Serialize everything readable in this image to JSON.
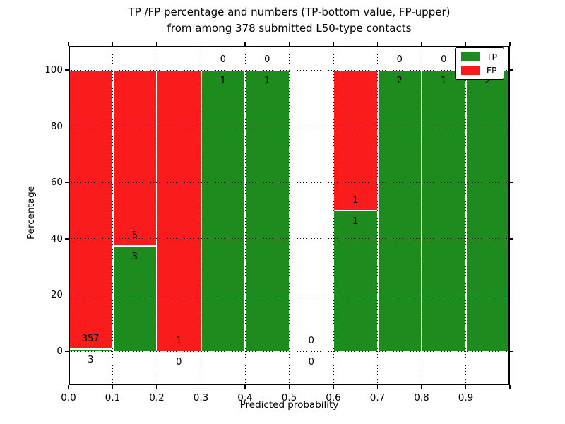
{
  "title": {
    "line1": "TP /FP percentage and numbers (TP-bottom value, FP-upper)",
    "line2": "from among 378 submitted L50-type contacts"
  },
  "axes": {
    "xlabel": "Predicted probability",
    "ylabel": "Percentage",
    "x_tick_labels": [
      "0.0",
      "0.1",
      "0.2",
      "0.3",
      "0.4",
      "0.5",
      "0.6",
      "0.7",
      "0.8",
      "0.9"
    ],
    "y_tick_values": [
      0,
      20,
      40,
      60,
      80,
      100
    ],
    "y_tick_labels": [
      "0",
      "20",
      "40",
      "60",
      "80",
      "100"
    ]
  },
  "legend": {
    "position": "upper-right",
    "items": [
      {
        "label": "TP",
        "color": "#1e8b1e"
      },
      {
        "label": "FP",
        "color": "#fa1c1c"
      }
    ]
  },
  "colors": {
    "tp": "#1e8b1e",
    "fp": "#fa1c1c",
    "bar_edge": "#ffffff",
    "grid": "#000000",
    "frame": "#000000",
    "background": "#ffffff"
  },
  "chart_data": {
    "type": "bar",
    "stacked": true,
    "title": "TP /FP percentage and numbers (TP-bottom value, FP-upper) from among 378 submitted L50-type contacts",
    "xlabel": "Predicted probability",
    "ylabel": "Percentage",
    "xlim": [
      0.0,
      1.0
    ],
    "ylim": [
      -12,
      108.5
    ],
    "bin_width": 0.1,
    "grid": "dotted",
    "legend_position": "upper-right",
    "categories": [
      "0.0-0.1",
      "0.1-0.2",
      "0.2-0.3",
      "0.3-0.4",
      "0.4-0.5",
      "0.5-0.6",
      "0.6-0.7",
      "0.7-0.8",
      "0.8-0.9",
      "0.9-1.0"
    ],
    "series": [
      {
        "name": "TP",
        "color": "#1e8b1e",
        "counts": [
          3,
          3,
          0,
          1,
          1,
          0,
          1,
          2,
          1,
          2
        ]
      },
      {
        "name": "FP",
        "color": "#fa1c1c",
        "counts": [
          357,
          5,
          1,
          0,
          0,
          0,
          1,
          0,
          0,
          0
        ]
      }
    ],
    "tp_percentages": [
      0.83,
      37.5,
      0,
      100,
      100,
      null,
      50,
      100,
      100,
      100
    ],
    "total_contacts": 378
  }
}
